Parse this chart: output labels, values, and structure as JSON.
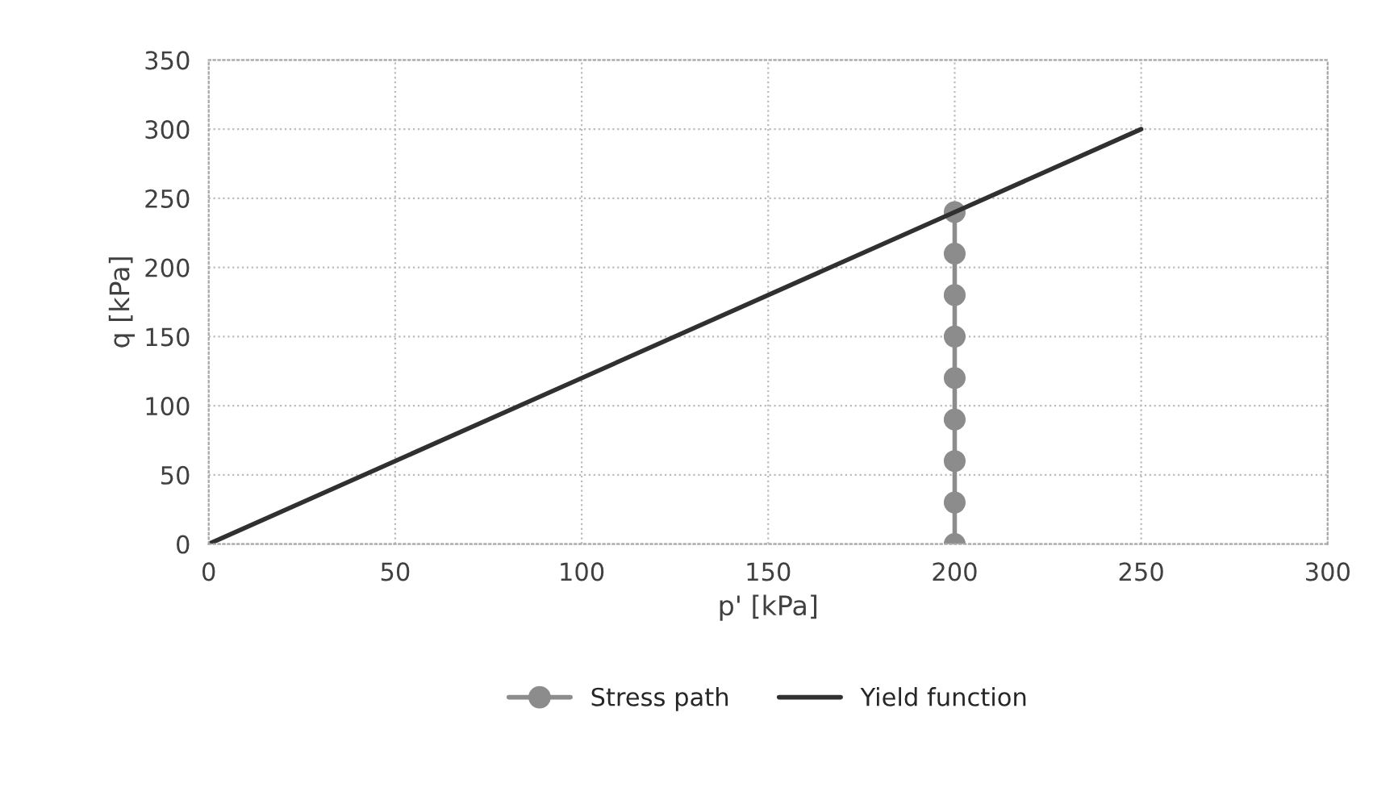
{
  "chart_data": {
    "type": "line",
    "xlabel": "p' [kPa]",
    "ylabel": "q [kPa]",
    "series": [
      {
        "name": "Stress path",
        "color": "#8c8c8c",
        "marker": "circle",
        "x": [
          200,
          200,
          200,
          200,
          200,
          200,
          200,
          200,
          200
        ],
        "values": [
          0,
          30,
          60,
          90,
          120,
          150,
          180,
          210,
          240
        ]
      },
      {
        "name": "Yield function",
        "color": "#303030",
        "marker": "none",
        "x": [
          0,
          250
        ],
        "values": [
          0,
          300
        ]
      }
    ],
    "xlim": [
      0,
      300
    ],
    "xticks": [
      0,
      50,
      100,
      150,
      200,
      250,
      300
    ],
    "ylim": [
      0,
      350
    ],
    "yticks": [
      0,
      50,
      100,
      150,
      200,
      250,
      300,
      350
    ],
    "grid": true,
    "legend": "bottom",
    "line_style": "solid"
  }
}
